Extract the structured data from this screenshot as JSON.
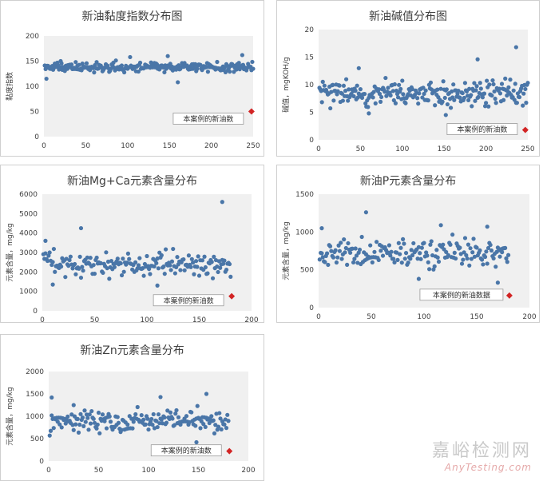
{
  "chart_data": [
    {
      "type": "scatter",
      "title": "新油黏度指数分布图",
      "ylabel": "黏度指数",
      "xlim": [
        0,
        250
      ],
      "ylim": [
        0,
        200
      ],
      "xticks": [
        0,
        50,
        100,
        150,
        200,
        250
      ],
      "yticks": [
        0,
        50,
        100,
        150,
        200
      ],
      "x_tick_labels": [
        "0",
        "50",
        "100",
        "150",
        "200",
        "250"
      ],
      "y_tick_labels": [
        "0",
        "50",
        "100",
        "150",
        "200"
      ],
      "series": [
        {
          "base": 138,
          "spread": 8,
          "count": 250,
          "seed": 11,
          "outliers": [
            [
              3,
              115
            ],
            [
              103,
              158
            ],
            [
              148,
              160
            ],
            [
              160,
              108
            ],
            [
              237,
              162
            ],
            [
              20,
              150
            ]
          ]
        }
      ],
      "highlight": {
        "x": 248,
        "y": 50,
        "label": "本案例的新油数"
      }
    },
    {
      "type": "scatter",
      "title": "新油碱值分布图",
      "ylabel": "碱值，mgKOH/g",
      "xlim": [
        0,
        250
      ],
      "ylim": [
        0,
        20
      ],
      "xticks": [
        0,
        50,
        100,
        150,
        200,
        250
      ],
      "yticks": [
        0,
        5,
        10,
        15,
        20
      ],
      "x_tick_labels": [
        "0",
        "50",
        "100",
        "150",
        "200",
        "250"
      ],
      "y_tick_labels": [
        "0",
        "5",
        "10",
        "15",
        "20"
      ],
      "series": [
        {
          "base": 8.5,
          "spread": 2.0,
          "count": 250,
          "seed": 23,
          "outliers": [
            [
              48,
              13
            ],
            [
              190,
              14.6
            ],
            [
              236,
              16.8
            ],
            [
              152,
              4.5
            ],
            [
              60,
              4.8
            ]
          ]
        }
      ],
      "highlight": {
        "x": 247,
        "y": 1.8,
        "label": "本案例的新油数"
      }
    },
    {
      "type": "scatter",
      "title": "新油Mg+Ca元素含量分布",
      "ylabel": "元素含量，mg/kg",
      "xlim": [
        0,
        200
      ],
      "ylim": [
        0,
        6000
      ],
      "xticks": [
        0,
        50,
        100,
        150,
        200
      ],
      "yticks": [
        0,
        1000,
        2000,
        3000,
        4000,
        5000,
        6000
      ],
      "x_tick_labels": [
        "0",
        "50",
        "100",
        "150",
        "200"
      ],
      "y_tick_labels": [
        "0",
        "1000",
        "2000",
        "3000",
        "4000",
        "5000",
        "6000"
      ],
      "series": [
        {
          "base": 2400,
          "spread": 550,
          "count": 180,
          "seed": 37,
          "outliers": [
            [
              3,
              3600
            ],
            [
              37,
              4250
            ],
            [
              172,
              5600
            ],
            [
              110,
              1300
            ],
            [
              10,
              1350
            ]
          ]
        }
      ],
      "highlight": {
        "x": 181,
        "y": 750,
        "label": "本案例的新油数"
      }
    },
    {
      "type": "scatter",
      "title": "新油P元素含量分布",
      "ylabel": "元素含量，mg/kg",
      "xlim": [
        0,
        200
      ],
      "ylim": [
        0,
        1500
      ],
      "xticks": [
        0,
        50,
        100,
        150,
        200
      ],
      "yticks": [
        0,
        500,
        1000,
        1500
      ],
      "x_tick_labels": [
        "0",
        "50",
        "100",
        "150",
        "200"
      ],
      "y_tick_labels": [
        "0",
        "500",
        "1000",
        "1500"
      ],
      "series": [
        {
          "base": 720,
          "spread": 160,
          "count": 180,
          "seed": 53,
          "outliers": [
            [
              45,
              1260
            ],
            [
              3,
              1050
            ],
            [
              116,
              1090
            ],
            [
              160,
              1070
            ],
            [
              170,
              330
            ],
            [
              95,
              380
            ]
          ]
        }
      ],
      "highlight": {
        "x": 181,
        "y": 160,
        "label": "本案例的新油数据"
      }
    },
    {
      "type": "scatter",
      "title": "新油Zn元素含量分布",
      "ylabel": "元素含量，mg/kg",
      "xlim": [
        0,
        200
      ],
      "ylim": [
        0,
        2000
      ],
      "xticks": [
        0,
        50,
        100,
        150,
        200
      ],
      "yticks": [
        0,
        500,
        1000,
        1500,
        2000
      ],
      "x_tick_labels": [
        "0",
        "50",
        "100",
        "150",
        "200"
      ],
      "y_tick_labels": [
        "0",
        "500",
        "1000",
        "1500",
        "2000"
      ],
      "series": [
        {
          "base": 900,
          "spread": 210,
          "count": 180,
          "seed": 71,
          "outliers": [
            [
              3,
              1420
            ],
            [
              112,
              1430
            ],
            [
              158,
              1500
            ],
            [
              25,
              1250
            ],
            [
              148,
              420
            ]
          ]
        }
      ],
      "highlight": {
        "x": 181,
        "y": 220,
        "label": "本案例的新油数"
      }
    }
  ],
  "colors": {
    "point": "#4a76a8",
    "highlight": "#d22424",
    "plot_bg": "#f0f0f0",
    "axis_text": "#404040"
  },
  "watermark": {
    "cn": "嘉峪检测网",
    "en": "AnyTesting.com"
  }
}
